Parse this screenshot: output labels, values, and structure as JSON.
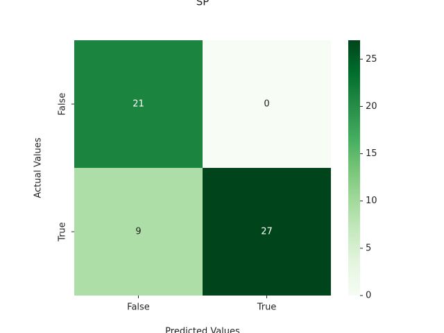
{
  "chart_data": {
    "type": "heatmap",
    "title": "SP",
    "x_label": "Predicted Values",
    "y_label": "Actual Values",
    "x_categories": [
      "False",
      "True"
    ],
    "y_categories": [
      "False",
      "True"
    ],
    "values": [
      [
        21,
        0
      ],
      [
        9,
        27
      ]
    ],
    "colormap": [
      "#f7fcf5",
      "#e5f5e0",
      "#c7e9c0",
      "#a1d99b",
      "#74c476",
      "#41ab5d",
      "#238b45",
      "#006d2c",
      "#00441b"
    ],
    "colorbar_lim": [
      0,
      27
    ],
    "colorbar_ticks": [
      0,
      5,
      10,
      15,
      20,
      25
    ]
  }
}
